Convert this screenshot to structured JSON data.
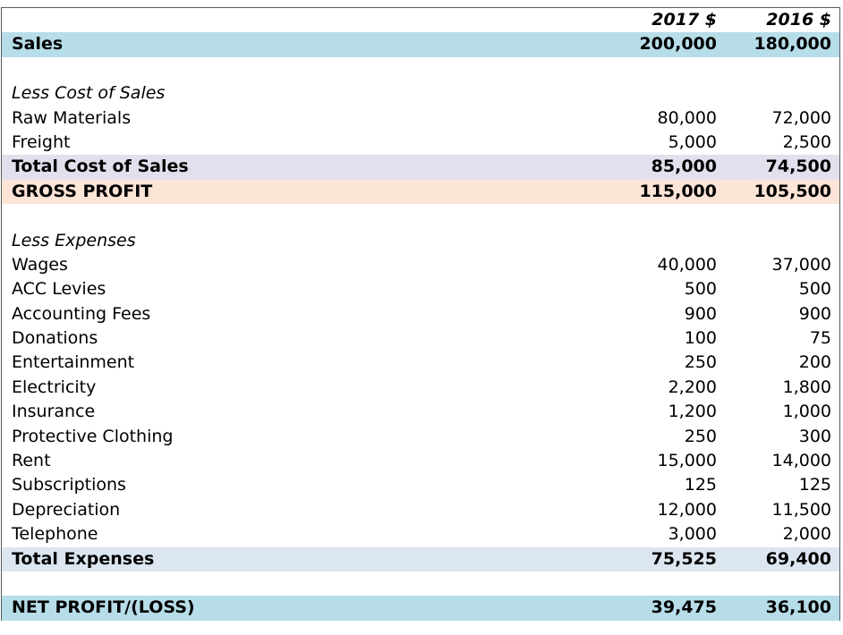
{
  "header": {
    "col_2017": "2017 $",
    "col_2016": "2016 $"
  },
  "sales": {
    "label": "Sales",
    "v2017": "200,000",
    "v2016": "180,000"
  },
  "cost_of_sales": {
    "heading": "Less Cost of Sales",
    "items": [
      {
        "label": "Raw Materials",
        "v2017": "80,000",
        "v2016": "72,000"
      },
      {
        "label": "Freight",
        "v2017": "5,000",
        "v2016": "2,500"
      }
    ],
    "total": {
      "label": "Total Cost of Sales",
      "v2017": "85,000",
      "v2016": "74,500"
    }
  },
  "gross_profit": {
    "label": "GROSS PROFIT",
    "v2017": "115,000",
    "v2016": "105,500"
  },
  "expenses": {
    "heading": "Less Expenses",
    "items": [
      {
        "label": "Wages",
        "v2017": "40,000",
        "v2016": "37,000"
      },
      {
        "label": "ACC Levies",
        "v2017": "500",
        "v2016": "500"
      },
      {
        "label": "Accounting Fees",
        "v2017": "900",
        "v2016": "900"
      },
      {
        "label": "Donations",
        "v2017": "100",
        "v2016": "75"
      },
      {
        "label": "Entertainment",
        "v2017": "250",
        "v2016": "200"
      },
      {
        "label": "Electricity",
        "v2017": "2,200",
        "v2016": "1,800"
      },
      {
        "label": "Insurance",
        "v2017": "1,200",
        "v2016": "1,000"
      },
      {
        "label": "Protective Clothing",
        "v2017": "250",
        "v2016": "300"
      },
      {
        "label": "Rent",
        "v2017": "15,000",
        "v2016": "14,000"
      },
      {
        "label": "Subscriptions",
        "v2017": "125",
        "v2016": "125"
      },
      {
        "label": "Depreciation",
        "v2017": "12,000",
        "v2016": "11,500"
      },
      {
        "label": "Telephone",
        "v2017": "3,000",
        "v2016": "2,000"
      }
    ],
    "total": {
      "label": "Total Expenses",
      "v2017": "75,525",
      "v2016": "69,400"
    }
  },
  "net_profit": {
    "label": "NET PROFIT/(LOSS)",
    "v2017": "39,475",
    "v2016": "36,100"
  },
  "colors": {
    "sales_row": "#b7dde8",
    "cost_total_row": "#e4dfec",
    "gross_profit_row": "#fce4d6",
    "expenses_total_row": "#dce6f1",
    "net_profit_row": "#b7dde8"
  }
}
